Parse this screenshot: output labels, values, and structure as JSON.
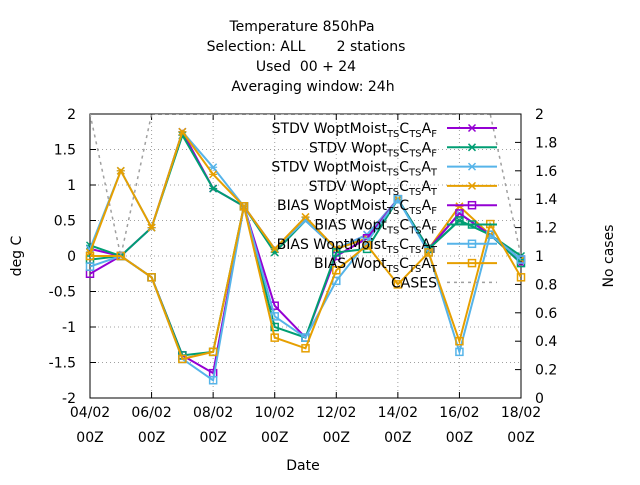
{
  "chart_data": {
    "type": "line",
    "title_lines": [
      "Temperature 850hPa",
      "Selection: ALL       2 stations",
      "Used  00 + 24",
      "Averaging window: 24h"
    ],
    "xlabel": "Date",
    "ylabel": "deg C",
    "y2label": "No cases",
    "xlim": [
      0,
      14
    ],
    "ylim": [
      -2,
      2
    ],
    "y2lim": [
      0,
      2
    ],
    "grid": true,
    "legend_position": "top-right",
    "x_ticks": [
      {
        "x": 0,
        "line1": "04/02",
        "line2": "00Z"
      },
      {
        "x": 2,
        "line1": "06/02",
        "line2": "00Z"
      },
      {
        "x": 4,
        "line1": "08/02",
        "line2": "00Z"
      },
      {
        "x": 6,
        "line1": "10/02",
        "line2": "00Z"
      },
      {
        "x": 8,
        "line1": "12/02",
        "line2": "00Z"
      },
      {
        "x": 10,
        "line1": "14/02",
        "line2": "00Z"
      },
      {
        "x": 12,
        "line1": "16/02",
        "line2": "00Z"
      },
      {
        "x": 14,
        "line1": "18/02",
        "line2": "00Z"
      }
    ],
    "y_ticks": [
      "2",
      "1.5",
      "1",
      "0.5",
      "0",
      "-0.5",
      "-1",
      "-1.5",
      "-2"
    ],
    "y2_ticks": [
      "2",
      "1.8",
      "1.6",
      "1.4",
      "1.2",
      "1",
      "0.8",
      "0.6",
      "0.4",
      "0.2",
      "0"
    ],
    "series": [
      {
        "name": "STDV WoptMoist TS CTS AF",
        "label_main": "STDV WoptMoist",
        "label_tail": [
          [
            "TS",
            "sub"
          ],
          [
            "C",
            ""
          ],
          [
            "TS",
            "sub"
          ],
          [
            "A",
            ""
          ],
          [
            "F",
            "sub"
          ]
        ],
        "color": "#9400d3",
        "marker": "x",
        "axis": "y1",
        "x": [
          0,
          1,
          2,
          3,
          4,
          5,
          6,
          7,
          8,
          9,
          10,
          11,
          12,
          13,
          14
        ],
        "values": [
          0.1,
          0.0,
          0.4,
          1.75,
          0.95,
          0.7,
          0.1,
          0.5,
          0.1,
          0.3,
          0.8,
          0.1,
          0.6,
          0.3,
          -0.1
        ]
      },
      {
        "name": "STDV Wopt TS CTS AF",
        "label_main": "STDV Wopt",
        "label_tail": [
          [
            "TS",
            "sub"
          ],
          [
            "C",
            ""
          ],
          [
            "TS",
            "sub"
          ],
          [
            "A",
            ""
          ],
          [
            "F",
            "sub"
          ]
        ],
        "color": "#009e73",
        "marker": "x",
        "axis": "y1",
        "x": [
          0,
          1,
          2,
          3,
          4,
          5,
          6,
          7,
          8,
          9,
          10,
          11,
          12,
          13,
          14
        ],
        "values": [
          0.15,
          0.0,
          0.4,
          1.7,
          0.95,
          0.7,
          0.05,
          0.5,
          0.1,
          0.25,
          0.8,
          0.1,
          0.5,
          0.3,
          0.0
        ]
      },
      {
        "name": "STDV WoptMoist TS CTS AT",
        "label_main": "STDV WoptMoist",
        "label_tail": [
          [
            "TS",
            "sub"
          ],
          [
            "C",
            ""
          ],
          [
            "TS",
            "sub"
          ],
          [
            "A",
            ""
          ],
          [
            "T",
            "sub"
          ]
        ],
        "color": "#56b4e9",
        "marker": "x",
        "axis": "y1",
        "x": [
          0,
          1,
          2,
          3,
          4,
          5,
          6,
          7,
          8,
          9,
          10,
          11,
          12,
          13,
          14
        ],
        "values": [
          0.1,
          1.2,
          0.4,
          1.75,
          1.25,
          0.7,
          0.1,
          0.5,
          0.1,
          0.3,
          0.8,
          0.1,
          0.6,
          0.3,
          -0.05
        ]
      },
      {
        "name": "STDV Wopt TS CTS AT",
        "label_main": "STDV Wopt",
        "label_tail": [
          [
            "TS",
            "sub"
          ],
          [
            "C",
            ""
          ],
          [
            "TS",
            "sub"
          ],
          [
            "A",
            ""
          ],
          [
            "T",
            "sub"
          ]
        ],
        "color": "#e69f00",
        "marker": "x",
        "axis": "y1",
        "x": [
          0,
          1,
          2,
          3,
          4,
          5,
          6,
          7,
          8,
          9,
          10,
          11,
          12,
          13,
          14
        ],
        "values": [
          0.05,
          1.2,
          0.4,
          1.75,
          1.15,
          0.7,
          0.1,
          0.55,
          0.1,
          0.25,
          0.8,
          0.1,
          0.7,
          0.3,
          -0.05
        ]
      },
      {
        "name": "BIAS WoptMoist TS CTS AF",
        "label_main": "BIAS WoptMoist",
        "label_tail": [
          [
            "TS",
            "sub"
          ],
          [
            "C",
            ""
          ],
          [
            "TS",
            "sub"
          ],
          [
            "A",
            ""
          ],
          [
            "F",
            "sub"
          ]
        ],
        "color": "#9400d3",
        "marker": "square",
        "axis": "y1",
        "x": [
          0,
          1,
          2,
          3,
          4,
          5,
          6,
          7,
          8,
          9,
          10,
          11,
          12,
          13,
          14
        ],
        "values": [
          -0.25,
          0.0,
          -0.3,
          -1.4,
          -1.65,
          0.7,
          -0.7,
          -1.15,
          0.0,
          0.25,
          0.8,
          0.1,
          0.6,
          0.3,
          -0.05
        ]
      },
      {
        "name": "BIAS Wopt TS CTS AF",
        "label_main": "BIAS Wopt",
        "label_tail": [
          [
            "TS",
            "sub"
          ],
          [
            "C",
            ""
          ],
          [
            "TS",
            "sub"
          ],
          [
            "A",
            ""
          ],
          [
            "F",
            "sub"
          ]
        ],
        "color": "#009e73",
        "marker": "square",
        "axis": "y1",
        "x": [
          0,
          1,
          2,
          3,
          4,
          5,
          6,
          7,
          8,
          9,
          10,
          11,
          12,
          13,
          14
        ],
        "values": [
          -0.05,
          0.0,
          -0.3,
          -1.4,
          -1.35,
          0.7,
          -1.0,
          -1.15,
          0.05,
          0.1,
          0.8,
          0.1,
          0.5,
          0.3,
          -0.1
        ]
      },
      {
        "name": "BIAS WoptMoist TS CTS AT",
        "label_main": "BIAS WoptMoist",
        "label_tail": [
          [
            "TS",
            "sub"
          ],
          [
            "C",
            ""
          ],
          [
            "TS",
            "sub"
          ],
          [
            "A",
            ""
          ],
          [
            "T",
            "sub"
          ]
        ],
        "color": "#56b4e9",
        "marker": "square",
        "axis": "y1",
        "x": [
          0,
          1,
          2,
          3,
          4,
          5,
          6,
          7,
          8,
          9,
          10,
          11,
          12,
          13,
          14
        ],
        "values": [
          -0.15,
          0.0,
          -0.3,
          -1.45,
          -1.75,
          0.7,
          -0.85,
          -1.15,
          -0.35,
          0.2,
          0.8,
          0.05,
          -1.35,
          0.3,
          -0.05
        ]
      },
      {
        "name": "BIAS Wopt TS CTS AT",
        "label_main": "BIAS Wopt",
        "label_tail": [
          [
            "TS",
            "sub"
          ],
          [
            "C",
            ""
          ],
          [
            "TS",
            "sub"
          ],
          [
            "A",
            ""
          ],
          [
            "T",
            "sub"
          ]
        ],
        "color": "#e69f00",
        "marker": "square",
        "axis": "y1",
        "x": [
          0,
          1,
          2,
          3,
          4,
          5,
          6,
          7,
          8,
          9,
          10,
          11,
          12,
          13,
          14
        ],
        "values": [
          0.0,
          0.0,
          -0.3,
          -1.45,
          -1.35,
          0.7,
          -1.15,
          -1.3,
          -0.2,
          0.15,
          -0.4,
          0.05,
          -1.2,
          0.45,
          -0.3
        ]
      },
      {
        "name": "CASES",
        "label_main": "CASES",
        "label_tail": [],
        "color": "#a0a0a0",
        "marker": "none",
        "dashed": true,
        "axis": "y2",
        "x": [
          0,
          1,
          2,
          3,
          4,
          5,
          6,
          7,
          8,
          9,
          10,
          11,
          12,
          13,
          14
        ],
        "values": [
          2,
          1,
          2,
          2,
          2,
          2,
          2,
          2,
          2,
          2,
          2,
          2,
          2,
          2,
          1
        ]
      }
    ]
  }
}
